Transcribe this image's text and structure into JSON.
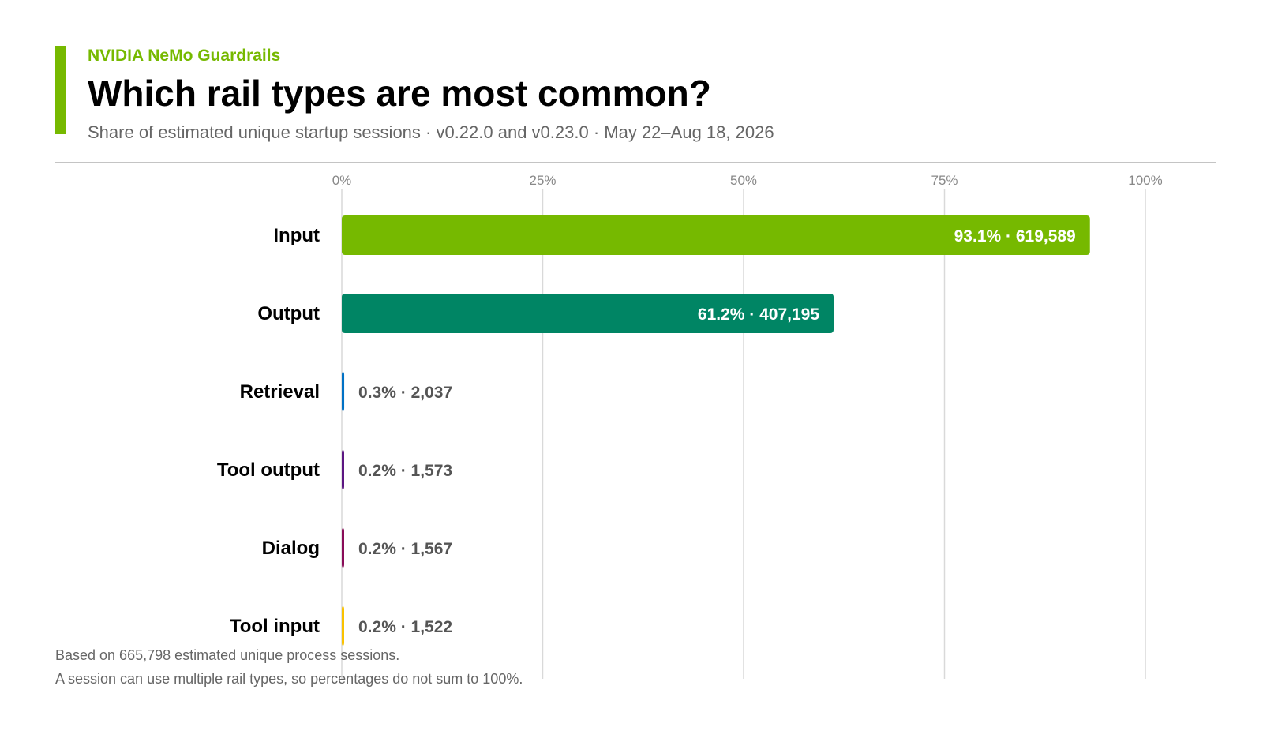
{
  "header": {
    "eyebrow": "NVIDIA NeMo Guardrails",
    "title": "Which rail types are most common?",
    "subtitle": "Share of estimated unique startup sessions · v0.22.0 and v0.23.0 · May 22–Aug 18, 2026"
  },
  "footnotes": {
    "line1": "Based on 665,798 estimated unique process sessions.",
    "line2": "A session can use multiple rail types, so percentages do not sum to 100%."
  },
  "colors": {
    "accent": "#76b900",
    "title": "#000000",
    "muted": "#666666",
    "grid": "#d9d9d9"
  },
  "chart_data": {
    "type": "bar",
    "orientation": "horizontal",
    "title": "Which rail types are most common?",
    "subtitle": "Share of estimated unique startup sessions · v0.22.0 and v0.23.0 · May 22–Aug 18, 2026",
    "xlabel": "",
    "ylabel": "",
    "xlim": [
      0,
      100
    ],
    "x_ticks": [
      0,
      25,
      50,
      75,
      100
    ],
    "x_tick_labels": [
      "0%",
      "25%",
      "50%",
      "75%",
      "100%"
    ],
    "grid": "vertical",
    "categories": [
      "Input",
      "Output",
      "Retrieval",
      "Tool output",
      "Dialog",
      "Tool input"
    ],
    "values": [
      93.1,
      61.2,
      0.3,
      0.2,
      0.2,
      0.2
    ],
    "counts": [
      619589,
      407195,
      2037,
      1573,
      1567,
      1522
    ],
    "data_labels": [
      "93.1% · 619,589",
      "61.2% · 407,195",
      "0.3% · 2,037",
      "0.2% · 1,573",
      "0.2% · 1,567",
      "0.2% · 1,522"
    ],
    "bar_colors": [
      "#76b900",
      "#008564",
      "#0071c5",
      "#5c1682",
      "#890c58",
      "#fac200"
    ]
  }
}
